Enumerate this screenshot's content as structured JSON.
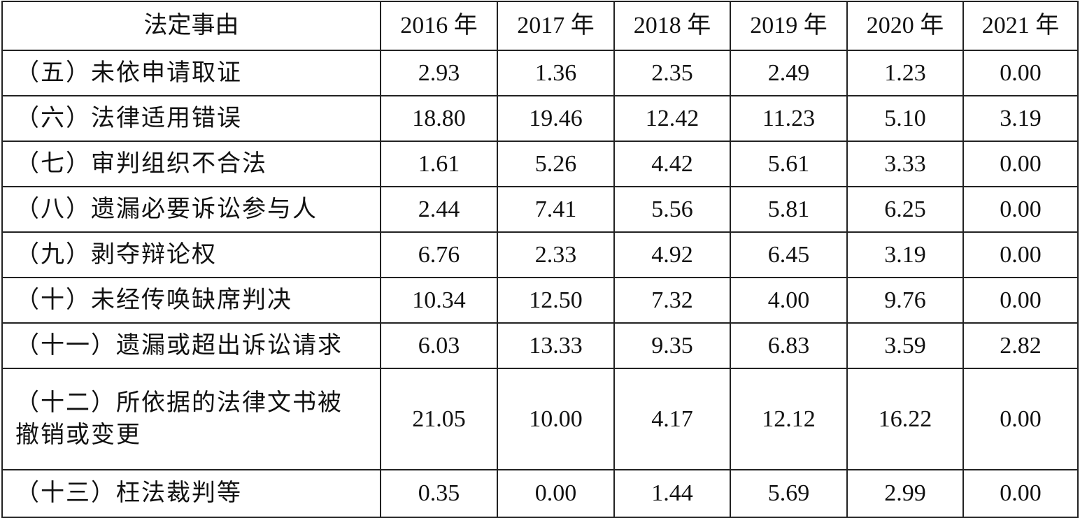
{
  "table": {
    "header": [
      "法定事由",
      "2016 年",
      "2017 年",
      "2018 年",
      "2019 年",
      "2020 年",
      "2021 年"
    ],
    "rows": [
      [
        "（五）未依申请取证",
        "2.93",
        "1.36",
        "2.35",
        "2.49",
        "1.23",
        "0.00"
      ],
      [
        "（六）法律适用错误",
        "18.80",
        "19.46",
        "12.42",
        "11.23",
        "5.10",
        "3.19"
      ],
      [
        "（七）审判组织不合法",
        "1.61",
        "5.26",
        "4.42",
        "5.61",
        "3.33",
        "0.00"
      ],
      [
        "（八）遗漏必要诉讼参与人",
        "2.44",
        "7.41",
        "5.56",
        "5.81",
        "6.25",
        "0.00"
      ],
      [
        "（九）剥夺辩论权",
        "6.76",
        "2.33",
        "4.92",
        "6.45",
        "3.19",
        "0.00"
      ],
      [
        "（十）未经传唤缺席判决",
        "10.34",
        "12.50",
        "7.32",
        "4.00",
        "9.76",
        "0.00"
      ],
      [
        "（十一）遗漏或超出诉讼请求",
        "6.03",
        "13.33",
        "9.35",
        "6.83",
        "3.59",
        "2.82"
      ],
      [
        "（十二）所依据的法律文书被撤销或变更",
        "21.05",
        "10.00",
        "4.17",
        "12.12",
        "16.22",
        "0.00"
      ],
      [
        "（十三）枉法裁判等",
        "0.35",
        "0.00",
        "1.44",
        "5.69",
        "2.99",
        "0.00"
      ]
    ]
  }
}
